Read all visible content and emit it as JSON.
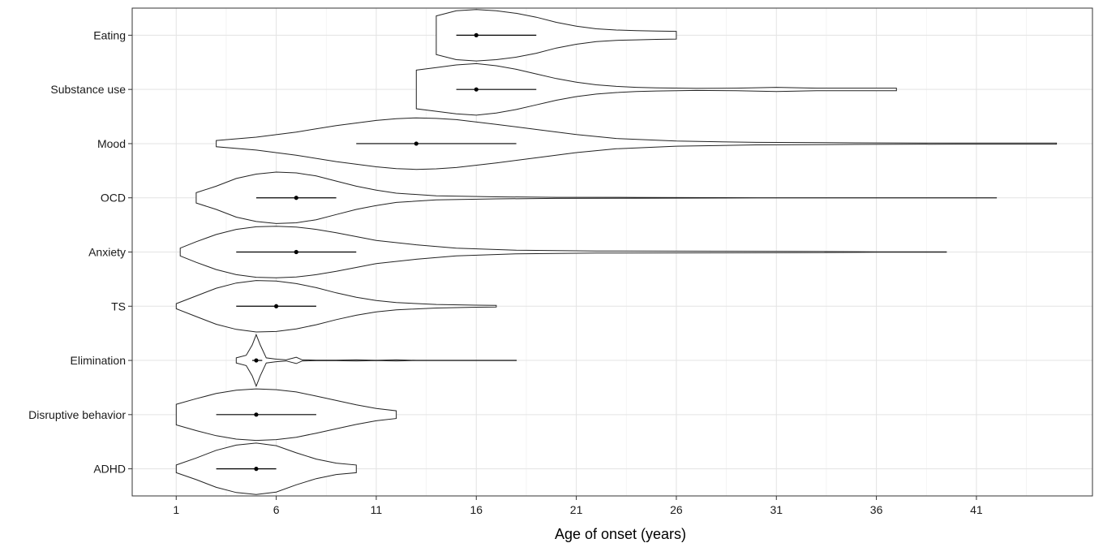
{
  "chart_data": {
    "type": "violin",
    "title": "",
    "xlabel": "Age of onset (years)",
    "ylabel": "",
    "xlim": [
      -1.2,
      46.8
    ],
    "x_ticks": [
      1,
      6,
      11,
      16,
      21,
      26,
      31,
      36,
      41
    ],
    "grid": true,
    "categories": [
      "Eating",
      "Substance use",
      "Mood",
      "OCD",
      "Anxiety",
      "TS",
      "Elimination",
      "Disruptive behavior",
      "ADHD"
    ],
    "series": [
      {
        "category": "Eating",
        "median": 16,
        "q1": 15,
        "q3": 19,
        "max_width": 0.45,
        "density": [
          [
            14,
            0.75
          ],
          [
            15,
            0.95
          ],
          [
            16,
            1.0
          ],
          [
            17,
            0.95
          ],
          [
            18,
            0.85
          ],
          [
            19,
            0.7
          ],
          [
            20,
            0.5
          ],
          [
            21,
            0.35
          ],
          [
            22,
            0.25
          ],
          [
            23,
            0.2
          ],
          [
            24,
            0.18
          ],
          [
            25,
            0.16
          ],
          [
            26,
            0.15
          ]
        ]
      },
      {
        "category": "Substance use",
        "median": 16,
        "q1": 15,
        "q3": 19,
        "max_width": 0.45,
        "density": [
          [
            13,
            0.75
          ],
          [
            14,
            0.85
          ],
          [
            15,
            0.95
          ],
          [
            16,
            1.0
          ],
          [
            17,
            0.92
          ],
          [
            18,
            0.78
          ],
          [
            19,
            0.6
          ],
          [
            20,
            0.42
          ],
          [
            21,
            0.28
          ],
          [
            22,
            0.18
          ],
          [
            23,
            0.12
          ],
          [
            24,
            0.08
          ],
          [
            25,
            0.06
          ],
          [
            27,
            0.04
          ],
          [
            29,
            0.05
          ],
          [
            31,
            0.08
          ],
          [
            33,
            0.05
          ],
          [
            35,
            0.05
          ],
          [
            37,
            0.05
          ]
        ]
      },
      {
        "category": "Mood",
        "median": 13,
        "q1": 10,
        "q3": 18,
        "max_width": 0.45,
        "density": [
          [
            3,
            0.12
          ],
          [
            5,
            0.25
          ],
          [
            7,
            0.45
          ],
          [
            9,
            0.7
          ],
          [
            11,
            0.9
          ],
          [
            12,
            0.97
          ],
          [
            13,
            1.0
          ],
          [
            14,
            0.98
          ],
          [
            15,
            0.93
          ],
          [
            17,
            0.75
          ],
          [
            19,
            0.55
          ],
          [
            21,
            0.35
          ],
          [
            23,
            0.2
          ],
          [
            26,
            0.1
          ],
          [
            30,
            0.05
          ],
          [
            35,
            0.03
          ],
          [
            40,
            0.02
          ],
          [
            44,
            0.02
          ],
          [
            45,
            0.02
          ]
        ]
      },
      {
        "category": "OCD",
        "median": 7,
        "q1": 5,
        "q3": 9,
        "max_width": 0.45,
        "density": [
          [
            2,
            0.2
          ],
          [
            3,
            0.45
          ],
          [
            4,
            0.75
          ],
          [
            5,
            0.92
          ],
          [
            6,
            1.0
          ],
          [
            7,
            0.97
          ],
          [
            8,
            0.85
          ],
          [
            9,
            0.65
          ],
          [
            10,
            0.45
          ],
          [
            11,
            0.3
          ],
          [
            12,
            0.18
          ],
          [
            14,
            0.08
          ],
          [
            17,
            0.04
          ],
          [
            20,
            0.02
          ],
          [
            24,
            0.015
          ],
          [
            30,
            0.005
          ],
          [
            42,
            0.005
          ]
        ]
      },
      {
        "category": "Anxiety",
        "median": 7,
        "q1": 4,
        "q3": 10,
        "max_width": 0.45,
        "density": [
          [
            1.2,
            0.15
          ],
          [
            2,
            0.4
          ],
          [
            3,
            0.68
          ],
          [
            4,
            0.88
          ],
          [
            5,
            0.98
          ],
          [
            6,
            1.0
          ],
          [
            7,
            0.97
          ],
          [
            8,
            0.88
          ],
          [
            9,
            0.75
          ],
          [
            10,
            0.6
          ],
          [
            11,
            0.45
          ],
          [
            13,
            0.28
          ],
          [
            15,
            0.15
          ],
          [
            18,
            0.07
          ],
          [
            22,
            0.04
          ],
          [
            28,
            0.03
          ],
          [
            32,
            0.025
          ],
          [
            36,
            0.01
          ],
          [
            39.5,
            0.01
          ]
        ]
      },
      {
        "category": "TS",
        "median": 6,
        "q1": 4,
        "q3": 8,
        "max_width": 0.45,
        "density": [
          [
            1,
            0.1
          ],
          [
            2,
            0.4
          ],
          [
            3,
            0.7
          ],
          [
            4,
            0.9
          ],
          [
            5,
            1.0
          ],
          [
            6,
            0.98
          ],
          [
            7,
            0.88
          ],
          [
            8,
            0.72
          ],
          [
            9,
            0.52
          ],
          [
            10,
            0.35
          ],
          [
            11,
            0.22
          ],
          [
            12,
            0.14
          ],
          [
            14,
            0.07
          ],
          [
            16,
            0.04
          ],
          [
            17,
            0.03
          ]
        ]
      },
      {
        "category": "Elimination",
        "median": 5,
        "q1": 4.8,
        "q3": 5.3,
        "max_width": 0.45,
        "density": [
          [
            4,
            0.1
          ],
          [
            4.5,
            0.2
          ],
          [
            4.8,
            0.6
          ],
          [
            5,
            1.0
          ],
          [
            5.2,
            0.6
          ],
          [
            5.5,
            0.1
          ],
          [
            6,
            0.05
          ],
          [
            6.5,
            0.02
          ],
          [
            7,
            0.12
          ],
          [
            7.3,
            0.02
          ],
          [
            8,
            0.01
          ],
          [
            9,
            0.01
          ],
          [
            10,
            0.02
          ],
          [
            11,
            0.005
          ],
          [
            12,
            0.02
          ],
          [
            13,
            0.005
          ],
          [
            18,
            0.005
          ]
        ]
      },
      {
        "category": "Disruptive behavior",
        "median": 5,
        "q1": 3,
        "q3": 8,
        "max_width": 0.45,
        "density": [
          [
            1,
            0.4
          ],
          [
            2,
            0.62
          ],
          [
            3,
            0.82
          ],
          [
            4,
            0.95
          ],
          [
            5,
            1.0
          ],
          [
            6,
            0.97
          ],
          [
            7,
            0.88
          ],
          [
            8,
            0.72
          ],
          [
            9,
            0.55
          ],
          [
            10,
            0.38
          ],
          [
            11,
            0.24
          ],
          [
            12,
            0.15
          ]
        ]
      },
      {
        "category": "ADHD",
        "median": 5,
        "q1": 3,
        "q3": 6,
        "max_width": 0.45,
        "density": [
          [
            1,
            0.15
          ],
          [
            2,
            0.42
          ],
          [
            3,
            0.72
          ],
          [
            4,
            0.92
          ],
          [
            5,
            1.0
          ],
          [
            6,
            0.9
          ],
          [
            7,
            0.62
          ],
          [
            8,
            0.38
          ],
          [
            9,
            0.22
          ],
          [
            10,
            0.15
          ]
        ]
      }
    ]
  }
}
